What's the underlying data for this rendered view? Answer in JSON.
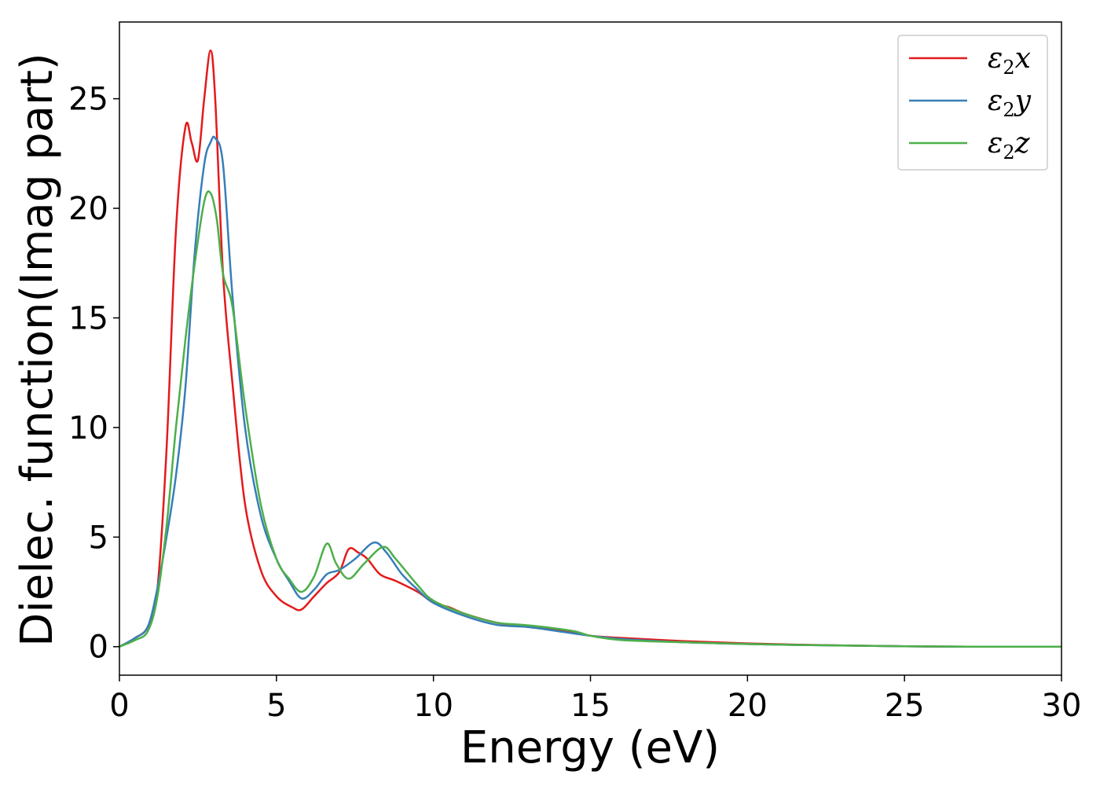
{
  "chart_data": {
    "type": "line",
    "title": "",
    "xlabel": "Energy (eV)",
    "ylabel": "Dielec. function(Imag part)",
    "xlim": [
      0,
      30
    ],
    "ylim": [
      -1.3,
      28.5
    ],
    "xticks": [
      0,
      5,
      10,
      15,
      20,
      25,
      30
    ],
    "yticks": [
      0,
      5,
      10,
      15,
      20,
      25
    ],
    "grid": false,
    "legend_position": "top-right",
    "series": [
      {
        "name": "ε₂x",
        "legend_base": "ε",
        "legend_sub": "2",
        "legend_suffix": "x",
        "color": "#e41a1c",
        "x": [
          0,
          0.5,
          0.9,
          1.2,
          1.5,
          1.8,
          2.1,
          2.3,
          2.5,
          2.7,
          2.9,
          3.05,
          3.3,
          3.6,
          4.0,
          4.5,
          5.0,
          5.5,
          5.8,
          6.2,
          6.6,
          7.0,
          7.3,
          7.6,
          7.9,
          8.3,
          8.8,
          9.5,
          10.0,
          10.5,
          11.0,
          12.0,
          13.0,
          14.0,
          15.0,
          16.0,
          18.0,
          20.0,
          22.0,
          25.0,
          27.0,
          30.0
        ],
        "y": [
          0,
          0.4,
          0.9,
          2.5,
          9.0,
          19.0,
          23.7,
          23.0,
          22.2,
          25.0,
          27.2,
          25.0,
          17.0,
          12.0,
          6.5,
          3.5,
          2.3,
          1.8,
          1.7,
          2.3,
          2.9,
          3.4,
          4.45,
          4.3,
          4.0,
          3.3,
          3.0,
          2.5,
          2.0,
          1.8,
          1.5,
          1.1,
          0.9,
          0.75,
          0.5,
          0.4,
          0.25,
          0.15,
          0.08,
          0.02,
          0.0,
          0.0
        ]
      },
      {
        "name": "ε₂y",
        "legend_base": "ε",
        "legend_sub": "2",
        "legend_suffix": "y",
        "color": "#377eb8",
        "x": [
          0,
          0.5,
          0.9,
          1.2,
          1.5,
          1.8,
          2.1,
          2.4,
          2.7,
          2.9,
          3.05,
          3.3,
          3.6,
          4.0,
          4.5,
          5.0,
          5.4,
          5.8,
          6.2,
          6.6,
          7.0,
          7.5,
          8.1,
          8.5,
          9.0,
          9.5,
          10.0,
          11.0,
          12.0,
          13.0,
          14.0,
          15.0,
          16.0,
          18.0,
          20.0,
          22.0,
          25.0,
          27.0,
          30.0
        ],
        "y": [
          0,
          0.4,
          0.9,
          2.6,
          5.0,
          7.8,
          11.8,
          18.0,
          22.0,
          23.0,
          23.2,
          22.0,
          16.0,
          10.0,
          6.0,
          4.0,
          3.0,
          2.2,
          2.6,
          3.3,
          3.5,
          4.0,
          4.75,
          4.3,
          3.3,
          2.6,
          2.0,
          1.4,
          1.0,
          0.9,
          0.7,
          0.5,
          0.35,
          0.2,
          0.12,
          0.07,
          0.02,
          0.0,
          0.0
        ]
      },
      {
        "name": "ε₂z",
        "legend_base": "ε",
        "legend_sub": "2",
        "legend_suffix": "z",
        "color": "#4daf4a",
        "x": [
          0,
          0.5,
          0.9,
          1.2,
          1.5,
          1.8,
          2.1,
          2.4,
          2.7,
          2.9,
          3.1,
          3.3,
          3.6,
          4.0,
          4.5,
          5.0,
          5.4,
          5.8,
          6.2,
          6.6,
          6.9,
          7.3,
          7.8,
          8.4,
          8.8,
          9.5,
          10.0,
          11.0,
          12.0,
          12.8,
          13.5,
          14.5,
          15.0,
          16.0,
          18.0,
          20.0,
          22.0,
          25.0,
          27.0,
          30.0
        ],
        "y": [
          0,
          0.3,
          0.7,
          2.2,
          5.5,
          10.0,
          14.0,
          17.5,
          20.3,
          20.7,
          19.5,
          17.0,
          15.5,
          11.0,
          6.5,
          4.0,
          3.1,
          2.5,
          3.2,
          4.7,
          3.8,
          3.1,
          3.8,
          4.55,
          4.0,
          2.8,
          2.1,
          1.5,
          1.1,
          1.0,
          0.9,
          0.7,
          0.5,
          0.3,
          0.2,
          0.12,
          0.07,
          0.02,
          0.0,
          0.0
        ]
      }
    ]
  }
}
